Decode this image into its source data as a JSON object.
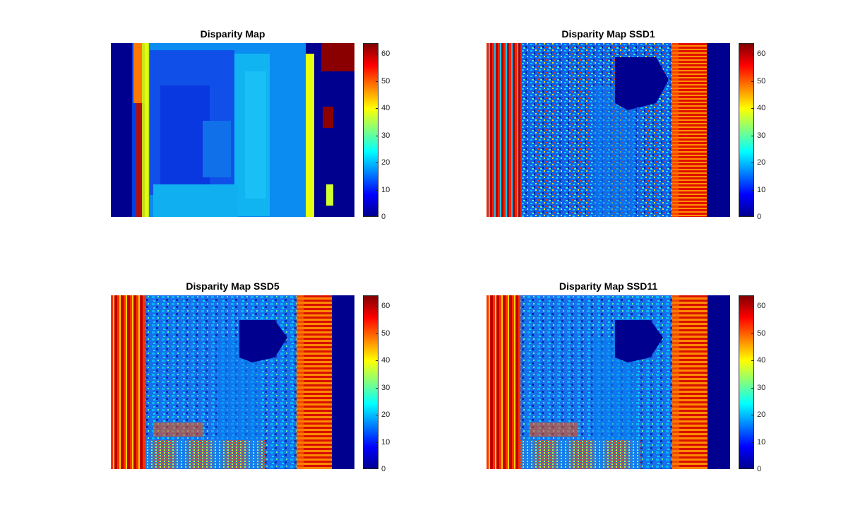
{
  "chart_data": [
    {
      "type": "heatmap",
      "title": "Disparity Map",
      "colormap": "jet",
      "clim": [
        0,
        64
      ],
      "colorbar_ticks": [
        "0",
        "10",
        "20",
        "30",
        "40",
        "50",
        "60"
      ],
      "colorbar_tick_values": [
        0,
        10,
        20,
        30,
        40,
        50,
        60
      ],
      "approx_region_values": {
        "left_border": 0,
        "left_strip_orange": 50,
        "yellow_pole": 40,
        "room_center": 12,
        "right_border_dark_red": 62
      }
    },
    {
      "type": "heatmap",
      "title": "Disparity Map SSD1",
      "colormap": "jet",
      "clim": [
        0,
        64
      ],
      "colorbar_ticks": [
        "0",
        "10",
        "20",
        "30",
        "40",
        "50",
        "60"
      ],
      "colorbar_tick_values": [
        0,
        10,
        20,
        30,
        40,
        50,
        60
      ],
      "approx_region_values": {
        "left_stripes": 55,
        "center_noise": 15,
        "hole": 0,
        "right_band": 60,
        "right_border": 0
      }
    },
    {
      "type": "heatmap",
      "title": "Disparity Map SSD5",
      "colormap": "jet",
      "clim": [
        0,
        64
      ],
      "colorbar_ticks": [
        "0",
        "10",
        "20",
        "30",
        "40",
        "50",
        "60"
      ],
      "colorbar_tick_values": [
        0,
        10,
        20,
        30,
        40,
        50,
        60
      ],
      "approx_region_values": {
        "left_stripes": 55,
        "center_noise": 15,
        "hole": 0,
        "right_band": 60,
        "right_border": 0
      }
    },
    {
      "type": "heatmap",
      "title": "Disparity Map SSD11",
      "colormap": "jet",
      "clim": [
        0,
        64
      ],
      "colorbar_ticks": [
        "0",
        "10",
        "20",
        "30",
        "40",
        "50",
        "60"
      ],
      "colorbar_tick_values": [
        0,
        10,
        20,
        30,
        40,
        50,
        60
      ],
      "approx_region_values": {
        "left_stripes": 55,
        "center_noise": 15,
        "hole": 0,
        "right_band": 60,
        "right_border": 0
      }
    }
  ]
}
